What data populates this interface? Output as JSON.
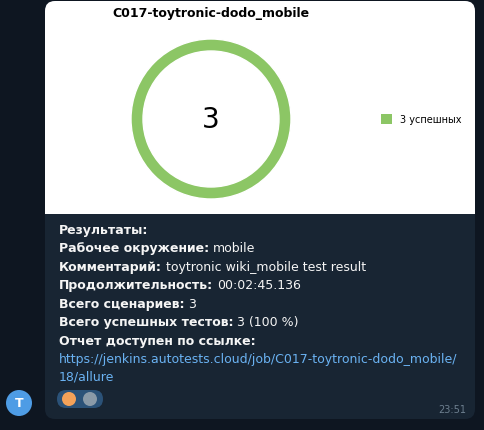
{
  "chart_data": {
    "type": "donut",
    "title": "C017-toytronic-dodo_mobile",
    "categories": [
      "3 успешных"
    ],
    "values": [
      3
    ],
    "colors": [
      "#8cc665"
    ],
    "center_text": "3",
    "legend": "right"
  },
  "message": {
    "heading": "Результаты:",
    "fields": [
      {
        "label": "Рабочее окружение:",
        "value": "mobile"
      },
      {
        "label": "Комментарий:",
        "value": "toytronic wiki_mobile test result"
      },
      {
        "label": "Продолжительность:",
        "value": "00:02:45.136"
      },
      {
        "label": "Всего сценариев:",
        "value": "3"
      },
      {
        "label": "Всего успешных тестов:",
        "value": "3 (100 %)"
      }
    ],
    "link_label": "Отчет доступен по ссылке:",
    "link": "https://jenkins.autotests.cloud/job/C017-toytronic-dodo_mobile/18/allure",
    "time": "23:51",
    "avatar": "T"
  }
}
